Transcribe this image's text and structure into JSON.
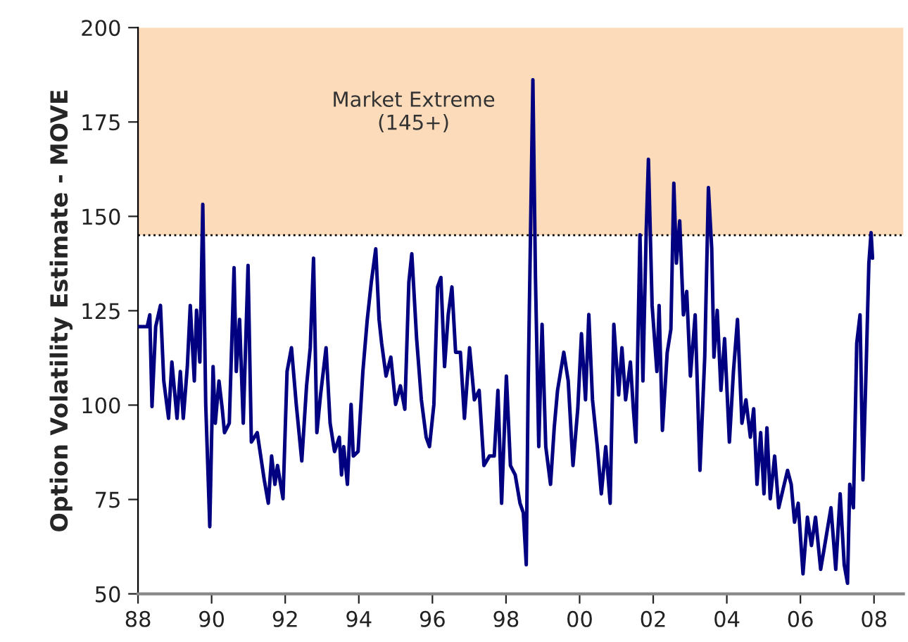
{
  "chart_data": {
    "type": "line",
    "ylabel": "Option Volatility Estimate - MOVE",
    "xlim": [
      1988,
      2008.8
    ],
    "ylim": [
      50,
      200
    ],
    "xticks": [
      {
        "value": 1988,
        "label": "88"
      },
      {
        "value": 1990,
        "label": "90"
      },
      {
        "value": 1992,
        "label": "92"
      },
      {
        "value": 1994,
        "label": "94"
      },
      {
        "value": 1996,
        "label": "96"
      },
      {
        "value": 1998,
        "label": "98"
      },
      {
        "value": 2000,
        "label": "00"
      },
      {
        "value": 2002,
        "label": "02"
      },
      {
        "value": 2004,
        "label": "04"
      },
      {
        "value": 2006,
        "label": "06"
      },
      {
        "value": 2008,
        "label": "08"
      }
    ],
    "yticks": [
      50,
      75,
      100,
      125,
      150,
      175,
      200
    ],
    "grid": false,
    "line_style": "solid",
    "marker": "none",
    "bands": [
      {
        "axis": "y",
        "from": 145,
        "to": 200,
        "label": "Market Extreme\n(145+)",
        "color": "#fbdbb9"
      }
    ],
    "ref_lines": [
      {
        "axis": "y",
        "value": 145,
        "line_style": "dotted",
        "color": "#000000"
      }
    ],
    "series": [
      {
        "color": "#000080",
        "x": [
          1988.0,
          1988.25,
          1988.32,
          1988.38,
          1988.48,
          1988.61,
          1988.7,
          1988.83,
          1988.92,
          1989.06,
          1989.15,
          1989.23,
          1989.34,
          1989.42,
          1989.53,
          1989.59,
          1989.68,
          1989.76,
          1989.84,
          1989.95,
          1990.04,
          1990.1,
          1990.2,
          1990.29,
          1990.35,
          1990.48,
          1990.61,
          1990.67,
          1990.76,
          1990.86,
          1990.99,
          1991.08,
          1991.24,
          1991.43,
          1991.54,
          1991.63,
          1991.72,
          1991.79,
          1991.94,
          1992.05,
          1992.17,
          1992.3,
          1992.45,
          1992.58,
          1992.68,
          1992.77,
          1992.86,
          1992.96,
          1993.11,
          1993.22,
          1993.34,
          1993.47,
          1993.53,
          1993.59,
          1993.69,
          1993.79,
          1993.85,
          1993.98,
          1994.11,
          1994.23,
          1994.34,
          1994.46,
          1994.55,
          1994.62,
          1994.74,
          1994.87,
          1995.0,
          1995.13,
          1995.25,
          1995.36,
          1995.44,
          1995.57,
          1995.7,
          1995.83,
          1995.92,
          1996.04,
          1996.14,
          1996.23,
          1996.33,
          1996.43,
          1996.53,
          1996.63,
          1996.76,
          1996.87,
          1997.01,
          1997.14,
          1997.27,
          1997.4,
          1997.55,
          1997.68,
          1997.78,
          1997.88,
          1998.01,
          1998.12,
          1998.25,
          1998.38,
          1998.47,
          1998.55,
          1998.6,
          1998.73,
          1998.8,
          1998.89,
          1998.98,
          1999.08,
          1999.21,
          1999.31,
          1999.4,
          1999.57,
          1999.69,
          1999.82,
          1999.95,
          2000.05,
          2000.16,
          2000.25,
          2000.35,
          2000.48,
          2000.59,
          2000.71,
          2000.83,
          2000.93,
          2001.06,
          2001.15,
          2001.25,
          2001.38,
          2001.46,
          2001.53,
          2001.64,
          2001.72,
          2001.81,
          2001.87,
          2001.97,
          2002.1,
          2002.16,
          2002.25,
          2002.38,
          2002.48,
          2002.56,
          2002.63,
          2002.72,
          2002.82,
          2002.91,
          2003.01,
          2003.14,
          2003.27,
          2003.4,
          2003.5,
          2003.59,
          2003.65,
          2003.74,
          2003.84,
          2003.94,
          2004.07,
          2004.18,
          2004.29,
          2004.41,
          2004.52,
          2004.64,
          2004.73,
          2004.82,
          2004.92,
          2005.01,
          2005.09,
          2005.18,
          2005.3,
          2005.41,
          2005.53,
          2005.65,
          2005.75,
          2005.84,
          2005.94,
          2006.07,
          2006.19,
          2006.3,
          2006.41,
          2006.55,
          2006.68,
          2006.83,
          2006.96,
          2007.08,
          2007.19,
          2007.28,
          2007.34,
          2007.44,
          2007.53,
          2007.62,
          2007.7,
          2007.79,
          2007.86,
          2007.92,
          2007.96
        ],
        "values": [
          120.8,
          120.8,
          123.9,
          99.6,
          120.8,
          126.4,
          106.4,
          96.5,
          111.4,
          96.5,
          108.9,
          96.5,
          110.2,
          126.4,
          106.4,
          125.1,
          111.4,
          153.2,
          100.2,
          67.8,
          110.2,
          95.2,
          106.4,
          98.9,
          92.7,
          95.2,
          136.4,
          108.9,
          122.7,
          95.2,
          137.0,
          90.2,
          92.7,
          80.2,
          74.0,
          86.5,
          79.0,
          84.0,
          75.2,
          108.9,
          115.2,
          100.2,
          85.2,
          105.1,
          115.2,
          138.9,
          92.7,
          102.7,
          115.2,
          95.2,
          87.7,
          91.5,
          81.5,
          89.0,
          79.0,
          100.2,
          86.5,
          87.7,
          108.9,
          122.7,
          132.6,
          141.4,
          122.7,
          116.4,
          107.7,
          112.7,
          100.2,
          105.1,
          98.9,
          132.6,
          140.1,
          117.7,
          101.4,
          91.5,
          89.0,
          100.2,
          131.3,
          133.8,
          110.2,
          124.0,
          131.3,
          114.0,
          114.0,
          96.5,
          115.2,
          101.4,
          103.9,
          84.0,
          86.5,
          86.5,
          103.9,
          74.0,
          107.7,
          84.0,
          81.5,
          74.0,
          71.5,
          57.7,
          103.9,
          186.2,
          133.8,
          89.0,
          121.4,
          89.0,
          79.0,
          94.0,
          103.9,
          114.0,
          106.4,
          84.0,
          99.0,
          118.9,
          101.4,
          124.0,
          101.4,
          89.0,
          76.5,
          89.0,
          74.0,
          121.4,
          102.7,
          115.2,
          101.4,
          111.4,
          99.0,
          90.2,
          145.1,
          106.4,
          146.3,
          165.1,
          126.4,
          108.9,
          126.4,
          93.3,
          113.9,
          120.1,
          158.8,
          137.6,
          148.8,
          123.9,
          130.1,
          107.7,
          123.9,
          82.7,
          112.7,
          157.6,
          141.4,
          112.7,
          125.1,
          103.9,
          117.6,
          90.2,
          108.9,
          122.7,
          95.2,
          101.4,
          91.5,
          99.0,
          79.0,
          92.7,
          76.5,
          94.0,
          75.2,
          86.5,
          72.8,
          77.8,
          82.7,
          79.0,
          69.0,
          74.0,
          55.3,
          70.3,
          62.8,
          70.3,
          56.5,
          64.0,
          72.8,
          56.5,
          76.5,
          57.7,
          52.8,
          79.0,
          72.8,
          116.4,
          123.9,
          80.2,
          111.4,
          137.6,
          145.7,
          138.9
        ]
      }
    ]
  }
}
